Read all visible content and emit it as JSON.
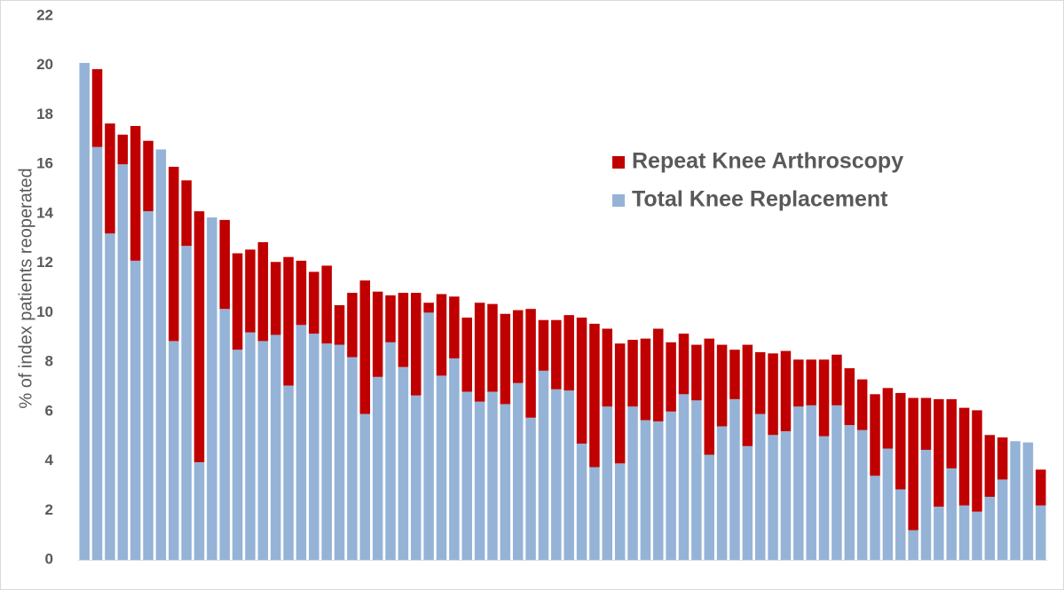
{
  "chart_data": {
    "type": "stacked_bar",
    "y_label": "% of index patients reoperated",
    "ylim": [
      0,
      22
    ],
    "yticks": [
      0,
      2,
      4,
      6,
      8,
      10,
      12,
      14,
      16,
      18,
      20,
      22
    ],
    "grid": false,
    "legend": "upper right",
    "series": [
      {
        "name": "Total Knee Replacement",
        "color": "#95b3d7",
        "values": [
          20.1,
          16.7,
          13.2,
          16.0,
          12.1,
          14.1,
          16.6,
          8.85,
          12.7,
          3.95,
          13.85,
          10.15,
          8.5,
          9.2,
          8.85,
          9.1,
          7.05,
          9.5,
          9.15,
          8.75,
          8.7,
          8.2,
          5.9,
          7.4,
          8.8,
          7.8,
          6.65,
          10.0,
          7.45,
          8.15,
          6.8,
          6.4,
          6.8,
          6.3,
          7.15,
          5.75,
          7.65,
          6.9,
          6.85,
          4.7,
          3.75,
          6.2,
          3.9,
          6.2,
          5.65,
          5.6,
          6.0,
          6.7,
          6.45,
          4.25,
          5.4,
          6.5,
          4.6,
          5.9,
          5.05,
          5.2,
          6.2,
          6.25,
          5.0,
          6.25,
          5.45,
          5.25,
          3.4,
          4.5,
          2.85,
          1.2,
          4.45,
          2.15,
          3.7,
          2.2,
          1.95,
          2.55,
          3.25,
          4.8,
          4.75,
          2.2
        ]
      },
      {
        "name": "Repeat Knee Arthroscopy",
        "color": "#c00000",
        "values": [
          0,
          3.15,
          4.45,
          1.2,
          5.45,
          2.85,
          0,
          7.05,
          2.65,
          10.15,
          0,
          3.6,
          3.9,
          3.35,
          4.0,
          2.95,
          5.2,
          2.6,
          2.5,
          3.15,
          1.6,
          2.6,
          5.4,
          3.45,
          1.9,
          3.0,
          4.15,
          0.4,
          3.3,
          2.5,
          3.0,
          4.0,
          3.55,
          3.65,
          2.95,
          4.4,
          2.05,
          2.8,
          3.05,
          5.1,
          5.8,
          3.15,
          4.85,
          2.7,
          3.3,
          3.75,
          2.8,
          2.45,
          2.25,
          4.7,
          3.3,
          2.0,
          4.1,
          2.5,
          3.3,
          3.25,
          1.9,
          1.85,
          3.1,
          2.05,
          2.3,
          2.05,
          3.3,
          2.45,
          3.9,
          5.35,
          2.1,
          4.35,
          2.8,
          3.95,
          4.1,
          2.5,
          1.7,
          0,
          0,
          1.45
        ]
      }
    ]
  }
}
